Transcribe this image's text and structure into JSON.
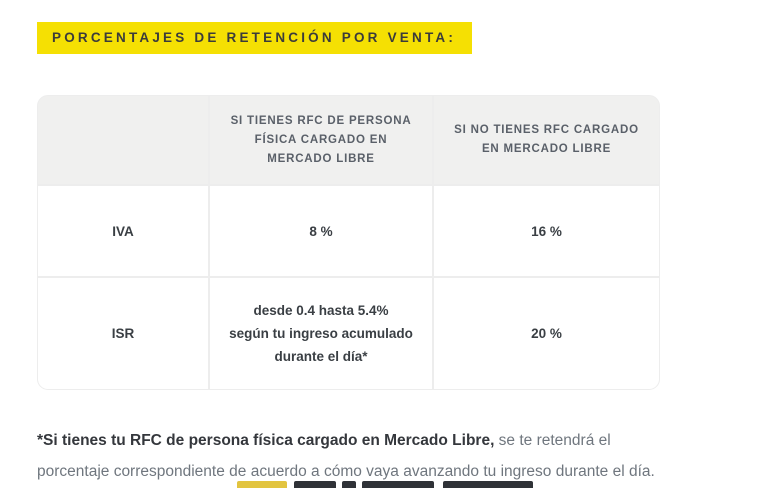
{
  "title": {
    "label": "PORCENTAJES DE RETENCIÓN POR VENTA:"
  },
  "table": {
    "header": [
      {
        "lines": []
      },
      {
        "lines": [
          "SI TIENES RFC DE PERSONA",
          "FÍSICA CARGADO EN",
          "MERCADO LIBRE"
        ]
      },
      {
        "lines": [
          "SI NO TIENES RFC CARGADO",
          "EN MERCADO LIBRE"
        ]
      }
    ],
    "rows": [
      {
        "name": "IVA",
        "with_rfc_lines": [
          "8 %"
        ],
        "without_rfc": "16 %"
      },
      {
        "name": "ISR",
        "with_rfc_lines": [
          "desde 0.4 hasta 5.4%",
          "según tu ingreso acumulado",
          "durante el día*"
        ],
        "without_rfc": "20 %"
      }
    ]
  },
  "footnote": {
    "bold": "*Si tienes tu RFC de persona física cargado en Mercado Libre,",
    "regular_line1": " se te retendrá el",
    "regular_line2": "porcentaje correspondiente de acuerdo a cómo vaya avanzando tu ingreso durante el día."
  },
  "colors": {
    "accent_yellow": "#F5E003",
    "header_bg": "#F0F0EF",
    "table_border": "#EDEDED",
    "cell_text": "#3A3F44",
    "header_text": "#5A6069",
    "footnote_bold": "#34373C",
    "footnote_regular": "#6F767E"
  }
}
